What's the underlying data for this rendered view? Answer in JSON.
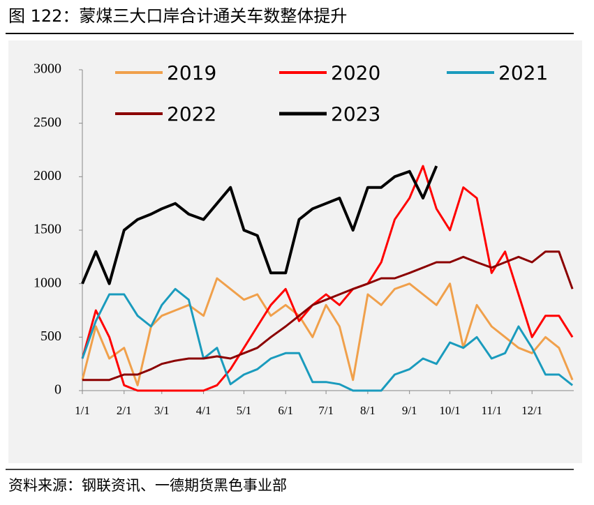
{
  "chart_data": {
    "type": "line",
    "title": "图 122：蒙煤三大口岸合计通关车数整体提升",
    "source": "资料来源：钢联资讯、一德期货黑色事业部",
    "x": [
      "1/1",
      "1/11",
      "1/21",
      "2/1",
      "2/11",
      "2/21",
      "3/1",
      "3/11",
      "3/21",
      "4/1",
      "4/11",
      "4/21",
      "5/1",
      "5/11",
      "5/21",
      "6/1",
      "6/11",
      "6/21",
      "7/1",
      "7/11",
      "7/21",
      "8/1",
      "8/11",
      "8/21",
      "9/1",
      "9/11",
      "9/21",
      "10/1",
      "10/11",
      "10/21",
      "11/1",
      "11/11",
      "11/21",
      "12/1",
      "12/11",
      "12/21",
      "12/31"
    ],
    "xticks": [
      "1/1",
      "2/1",
      "3/1",
      "4/1",
      "5/1",
      "6/1",
      "7/1",
      "8/1",
      "9/1",
      "10/1",
      "11/1",
      "12/1"
    ],
    "ylim": [
      0,
      3000
    ],
    "yticks": [
      0,
      500,
      1000,
      1500,
      2000,
      2500,
      3000
    ],
    "legend": "top",
    "series": [
      {
        "name": "2019",
        "color": "#f0a04b",
        "width": 3,
        "values": [
          100,
          600,
          300,
          400,
          50,
          600,
          700,
          750,
          800,
          700,
          1050,
          950,
          850,
          900,
          700,
          800,
          700,
          500,
          800,
          600,
          100,
          900,
          800,
          950,
          1000,
          900,
          800,
          1000,
          400,
          800,
          600,
          500,
          400,
          350,
          500,
          400,
          100
        ]
      },
      {
        "name": "2020",
        "color": "#ff0000",
        "width": 3,
        "values": [
          300,
          750,
          500,
          50,
          0,
          0,
          0,
          0,
          0,
          0,
          50,
          200,
          400,
          600,
          800,
          950,
          650,
          800,
          900,
          800,
          950,
          1000,
          1200,
          1600,
          1800,
          2100,
          1700,
          1500,
          1900,
          1800,
          1100,
          1300,
          900,
          500,
          700,
          700,
          500
        ]
      },
      {
        "name": "2021",
        "color": "#1a9bbd",
        "width": 3,
        "values": [
          300,
          650,
          900,
          900,
          700,
          600,
          800,
          950,
          850,
          300,
          400,
          60,
          150,
          200,
          300,
          350,
          350,
          80,
          80,
          60,
          0,
          0,
          0,
          150,
          200,
          300,
          250,
          450,
          400,
          500,
          300,
          350,
          600,
          400,
          150,
          150,
          50
        ]
      },
      {
        "name": "2022",
        "color": "#8b0000",
        "width": 3,
        "values": [
          100,
          100,
          100,
          150,
          150,
          200,
          250,
          280,
          300,
          300,
          320,
          300,
          350,
          400,
          500,
          600,
          700,
          800,
          850,
          900,
          950,
          1000,
          1050,
          1050,
          1100,
          1150,
          1200,
          1200,
          1250,
          1200,
          1150,
          1200,
          1250,
          1200,
          1300,
          1300,
          950
        ]
      },
      {
        "name": "2023",
        "color": "#000000",
        "width": 4,
        "values": [
          1000,
          1300,
          1000,
          1500,
          1600,
          1650,
          1700,
          1750,
          1650,
          1600,
          1750,
          1900,
          1500,
          1450,
          1100,
          1100,
          1600,
          1700,
          1750,
          1800,
          1500,
          1900,
          1900,
          2000,
          2050,
          1800,
          2100,
          null,
          null,
          null,
          null,
          null,
          null,
          null,
          null,
          null,
          null
        ]
      }
    ]
  }
}
